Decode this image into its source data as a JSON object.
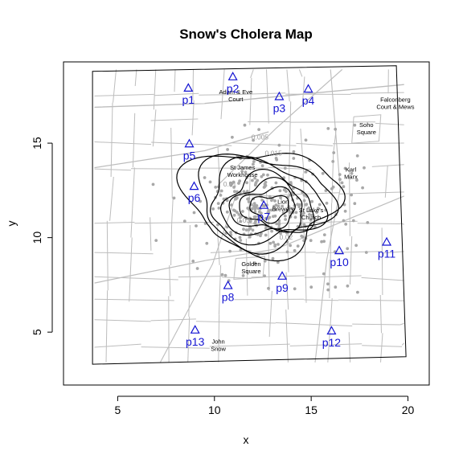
{
  "chart_data": {
    "type": "scatter",
    "title": "Snow's Cholera Map",
    "xlabel": "x",
    "ylabel": "y",
    "xlim": [
      2.2,
      21.1
    ],
    "ylim": [
      2.2,
      19.3
    ],
    "x_ticks": [
      5,
      10,
      15,
      20
    ],
    "y_ticks": [
      5,
      10,
      15
    ],
    "colors": {
      "pump": "#1414d2",
      "streets": "#bdbdbd",
      "deaths": "#a8a8a8",
      "contours": "#000000",
      "contour_labels": "#9a9a9a"
    },
    "map_border": [
      [
        3.7,
        18.8
      ],
      [
        19.4,
        19.1
      ],
      [
        19.9,
        3.7
      ],
      [
        3.7,
        3.3
      ]
    ],
    "pumps": [
      {
        "label": "p1",
        "x": 8.65,
        "y": 17.9
      },
      {
        "label": "p2",
        "x": 10.95,
        "y": 18.5
      },
      {
        "label": "p3",
        "x": 13.35,
        "y": 17.45
      },
      {
        "label": "p4",
        "x": 14.85,
        "y": 17.85
      },
      {
        "label": "p5",
        "x": 8.7,
        "y": 14.95
      },
      {
        "label": "p6",
        "x": 8.95,
        "y": 12.7
      },
      {
        "label": "p7",
        "x": 12.55,
        "y": 11.7
      },
      {
        "label": "p8",
        "x": 10.7,
        "y": 7.45
      },
      {
        "label": "p9",
        "x": 13.5,
        "y": 7.95
      },
      {
        "label": "p10",
        "x": 16.45,
        "y": 9.3
      },
      {
        "label": "p11",
        "x": 18.9,
        "y": 9.75
      },
      {
        "label": "p12",
        "x": 16.05,
        "y": 5.05
      },
      {
        "label": "p13",
        "x": 9.0,
        "y": 5.1
      }
    ],
    "landmarks": [
      {
        "lines": [
          "Adam & Eve",
          "Court"
        ],
        "x": 11.1,
        "y": 17.6
      },
      {
        "lines": [
          "Falconberg",
          "Court & Mews"
        ],
        "x": 19.35,
        "y": 17.2
      },
      {
        "lines": [
          "Soho",
          "Square"
        ],
        "x": 17.85,
        "y": 15.85
      },
      {
        "lines": [
          "St James",
          "Workhouse"
        ],
        "x": 11.45,
        "y": 13.6
      },
      {
        "lines": [
          "Karl",
          "Marx"
        ],
        "x": 17.05,
        "y": 13.5
      },
      {
        "lines": [
          "Lion",
          "Brewery"
        ],
        "x": 13.55,
        "y": 11.8
      },
      {
        "lines": [
          "St Luke's",
          "Church"
        ],
        "x": 15.0,
        "y": 11.35
      },
      {
        "lines": [
          "Golden",
          "Square"
        ],
        "x": 11.9,
        "y": 8.5
      },
      {
        "lines": [
          "John",
          "Snow"
        ],
        "x": 10.2,
        "y": 4.4
      }
    ],
    "contour_labels": [
      {
        "text": "0.005",
        "x": 12.35,
        "y": 15.2
      },
      {
        "text": "0.015",
        "x": 13.05,
        "y": 14.35
      },
      {
        "text": "0.01",
        "x": 10.8,
        "y": 12.7
      },
      {
        "text": "0.03",
        "x": 11.5,
        "y": 10.8
      },
      {
        "text": "0.02",
        "x": 13.7,
        "y": 9.9
      }
    ],
    "contour_center": {
      "x": 12.75,
      "y": 11.55
    },
    "contour_levels": [
      0.005,
      0.01,
      0.015,
      0.02,
      0.025,
      0.03,
      0.035
    ]
  }
}
